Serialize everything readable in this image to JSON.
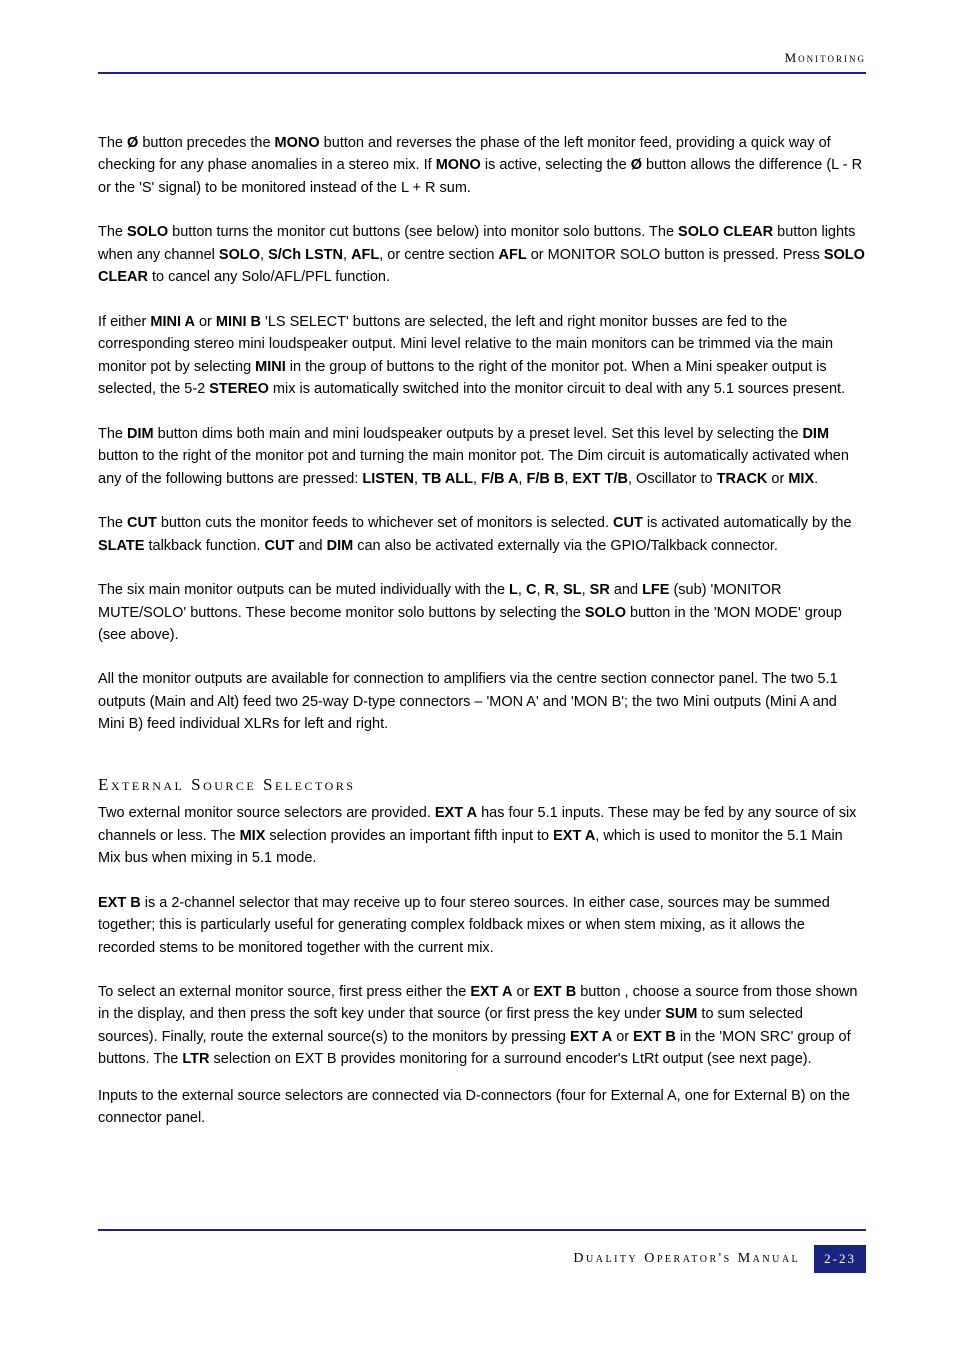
{
  "header": {
    "section_label": "Monitoring"
  },
  "paragraphs": {
    "p1": {
      "t1": "The ",
      "b1": "Ø",
      "t2": " button precedes the ",
      "b2": "MONO",
      "t3": " button and reverses the phase of the left monitor feed, providing a quick way of checking for any phase anomalies in a stereo mix. If ",
      "b3": "MONO",
      "t4": " is active, selecting the ",
      "b4": "Ø",
      "t5": " button allows the difference (L - R or the 'S' signal) to be monitored instead of the L + R sum."
    },
    "p2": {
      "t1": "The ",
      "b1": "SOLO",
      "t2": " button turns the monitor cut buttons (see below) into monitor solo buttons. The ",
      "b2": "SOLO CLEAR",
      "t3": " button lights when any channel ",
      "b3": "SOLO",
      "t4": ", ",
      "b4": "S/Ch LSTN",
      "t5": ", ",
      "b5": "AFL",
      "t6": ", or centre section ",
      "b6": "AFL",
      "t7": " or MONITOR SOLO button is pressed. Press  ",
      "b7": "SOLO CLEAR",
      "t8": " to cancel any Solo/AFL/PFL function."
    },
    "p3": {
      "t1": "If either ",
      "b1": "MINI A",
      "t2": " or ",
      "b2": "MINI B",
      "t3": " 'LS SELECT' buttons are selected, the left and right monitor busses are fed to the corresponding stereo mini loudspeaker output. Mini level relative to the main monitors can be trimmed via the main monitor pot by selecting ",
      "b3": "MINI",
      "t4": " in the group of buttons to the right of the monitor pot. When a Mini speaker output is selected, the 5-2 ",
      "b4": "STEREO",
      "t5": " mix is automatically switched into the monitor circuit to deal with any 5.1 sources present."
    },
    "p4": {
      "t1": "The ",
      "b1": "DIM",
      "t2": " button dims both main and mini loudspeaker outputs by a preset level. Set this level by selecting the ",
      "b2": "DIM",
      "t3": " button to the right of the monitor pot and turning the main monitor pot. The Dim circuit is automatically activated when any of the following buttons are pressed: ",
      "b3": "LISTEN",
      "t4": ", ",
      "b4": "TB ALL",
      "t5": ", ",
      "b5": "F/B A",
      "t6": ", ",
      "b6": "F/B B",
      "t7": ", ",
      "b7": "EXT T/B",
      "t8": ", Oscillator to ",
      "b8": "TRACK",
      "t9": " or ",
      "b9": "MIX",
      "t10": "."
    },
    "p5": {
      "t1": "The ",
      "b1": "CUT",
      "t2": " button cuts the monitor feeds to whichever set of monitors is selected. ",
      "b2": "CUT",
      "t3": " is activated automatically by the ",
      "b3": "SLATE",
      "t4": " talkback function. ",
      "b4": "CUT",
      "t5": " and ",
      "b5": "DIM",
      "t6": " can also be activated externally via the GPIO/Talkback connector."
    },
    "p6": {
      "t1": "The six main monitor outputs can be muted individually with the ",
      "b1": "L",
      "t2": ", ",
      "b2": "C",
      "t3": ", ",
      "b3": "R",
      "t4": ", ",
      "b4": "SL",
      "t5": ", ",
      "b5": "SR",
      "t6": " and ",
      "b6": "LFE",
      "t7": " (sub) 'MONITOR MUTE/SOLO' buttons. These become monitor solo buttons by selecting the ",
      "b7": "SOLO",
      "t8": " button in the 'MON MODE' group (see above)."
    },
    "p7": {
      "t1": "All the monitor outputs are available for connection to amplifiers via the centre section connector panel. The two 5.1 outputs (Main and Alt) feed two 25-way D-type connectors – 'MON A' and 'MON B'; the two Mini outputs (Mini A and Mini B) feed individual XLRs for left and right."
    },
    "heading": "External Source Selectors",
    "p8": {
      "t1": "Two external monitor source selectors are provided. ",
      "b1": "EXT A",
      "t2": " has four 5.1 inputs. These may be fed by any source of six channels or less. The ",
      "b2": "MIX",
      "t3": " selection provides an important fifth input to ",
      "b3": "EXT A",
      "t4": ", which is used to monitor the 5.1 Main Mix bus when mixing in 5.1 mode."
    },
    "p9": {
      "b1": "EXT B",
      "t1": " is a 2-channel selector that may receive up to four stereo sources. In either case, sources may be summed together; this is particularly useful for generating complex foldback mixes or when stem mixing, as it allows the recorded stems to be monitored together with the current mix."
    },
    "p10": {
      "t1": "To select an external monitor source, first press either the ",
      "b1": "EXT A",
      "t2": " or ",
      "b2": "EXT B",
      "t3": " button , choose a source from those shown in the display, and then press the soft key under that source (or first press the key under ",
      "b3": "SUM",
      "t4": " to sum selected sources). Finally, route the external source(s) to the monitors by pressing ",
      "b4": "EXT A",
      "t5": " or ",
      "b5": "EXT B",
      "t6": " in the 'MON SRC' group of buttons. The ",
      "b6": "LTR",
      "t7": " selection on EXT B provides monitoring for a surround encoder's LtRt output (see next page)."
    },
    "p11": {
      "t1": "Inputs to the external source selectors are connected via D-connectors (four for External A, one for External B) on the connector panel."
    }
  },
  "footer": {
    "manual_title": "Duality Operator's Manual",
    "page_number": "2-23"
  },
  "colors": {
    "rule": "#1a237e",
    "badge_bg": "#1a237e",
    "badge_fg": "#ffffff",
    "text": "#000000",
    "bg": "#ffffff"
  },
  "typography": {
    "body_family": "Arial, Helvetica, sans-serif",
    "body_size_pt": 11,
    "heading_family": "Copperplate",
    "heading_size_pt": 13,
    "line_height": 1.55
  }
}
